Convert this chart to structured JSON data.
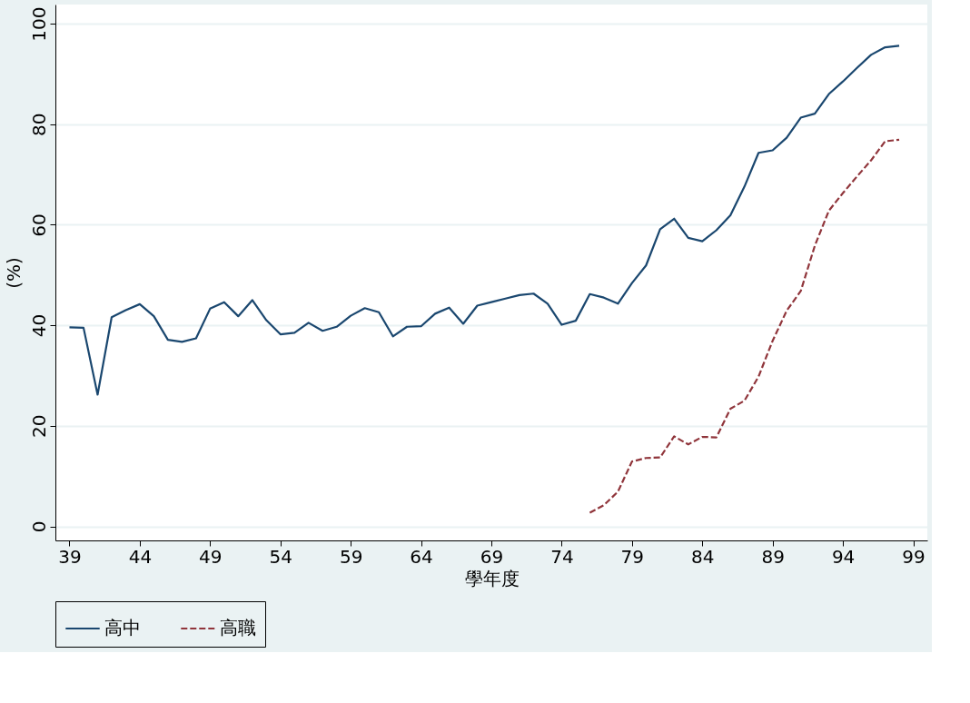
{
  "chart_data": {
    "type": "line",
    "xlabel": "學年度",
    "ylabel": "(%)",
    "xlim": [
      38,
      100
    ],
    "ylim": [
      -2.8,
      103.8
    ],
    "xticks": [
      39,
      44,
      49,
      54,
      59,
      64,
      69,
      74,
      79,
      84,
      89,
      94,
      99
    ],
    "yticks": [
      0,
      20,
      40,
      60,
      80,
      100
    ],
    "grid": "y",
    "legend": "bottom",
    "marker": "none",
    "series": [
      {
        "name": "高中",
        "color": "#1a476f",
        "line_style": "solid",
        "x": [
          39,
          40,
          41,
          42,
          43,
          44,
          45,
          46,
          47,
          48,
          49,
          50,
          51,
          52,
          53,
          54,
          55,
          56,
          57,
          58,
          59,
          60,
          61,
          62,
          63,
          64,
          65,
          66,
          67,
          68,
          69,
          70,
          71,
          72,
          73,
          74,
          75,
          76,
          77,
          78,
          79,
          80,
          81,
          82,
          83,
          84,
          85,
          86,
          87,
          88,
          89,
          90,
          91,
          92,
          93,
          94,
          95,
          96,
          97,
          98
        ],
        "values": [
          39.6,
          39.5,
          26.2,
          41.6,
          43.0,
          44.2,
          41.8,
          37.1,
          36.7,
          37.4,
          43.3,
          44.6,
          41.8,
          45.0,
          41.0,
          38.2,
          38.5,
          40.5,
          38.9,
          39.7,
          41.9,
          43.4,
          42.6,
          37.8,
          39.7,
          39.8,
          42.3,
          43.5,
          40.3,
          43.9,
          44.6,
          45.3,
          46.0,
          46.3,
          44.3,
          40.1,
          40.9,
          46.2,
          45.5,
          44.3,
          48.4,
          51.9,
          59.1,
          61.2,
          57.4,
          56.7,
          58.9,
          61.9,
          67.6,
          74.3,
          74.8,
          77.3,
          81.3,
          82.1,
          86.0,
          88.5,
          91.2,
          93.8,
          95.3,
          95.6
        ]
      },
      {
        "name": "高職",
        "color": "#90353b",
        "line_style": "dashed",
        "x": [
          76,
          77,
          78,
          79,
          80,
          81,
          82,
          83,
          84,
          85,
          86,
          87,
          88,
          89,
          90,
          91,
          92,
          93,
          94,
          95,
          96,
          97,
          98
        ],
        "values": [
          2.7,
          4.2,
          6.9,
          12.9,
          13.6,
          13.7,
          17.9,
          16.3,
          17.8,
          17.7,
          23.4,
          25.0,
          29.8,
          36.9,
          42.9,
          46.8,
          55.8,
          62.8,
          66.3,
          69.6,
          72.8,
          76.6,
          76.9
        ]
      }
    ]
  }
}
